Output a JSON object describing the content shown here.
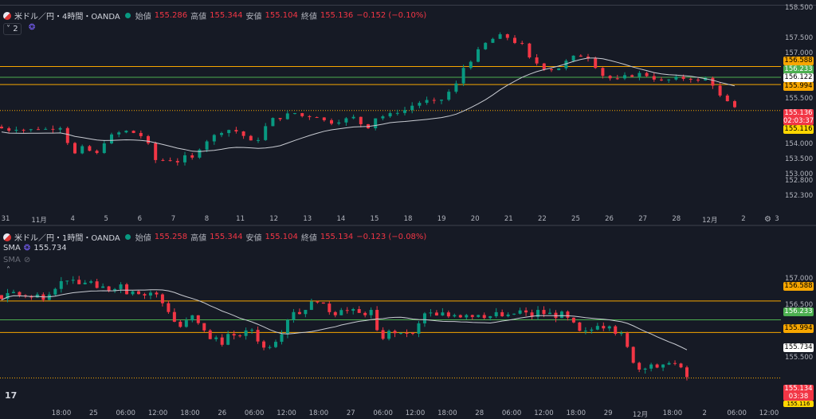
{
  "colors": {
    "up": "#089981",
    "down": "#f23645",
    "sma": "#c8cbd2",
    "orange": "#f7a600",
    "green": "#4caf50",
    "bg": "#161a25"
  },
  "chart_data": [
    {
      "type": "candlestick",
      "symbol": "米ドル／円・4時間・OANDA",
      "ohlc_labels": {
        "o": "始値",
        "h": "高値",
        "l": "安値",
        "c": "終値"
      },
      "ohlc": {
        "o": "155.286",
        "h": "155.344",
        "l": "155.104",
        "c": "155.136",
        "chg": "−0.152 (−0.10%)"
      },
      "indicator_count": "2",
      "ylim": [
        152.05,
        158.55
      ],
      "yticks": [
        "158.500",
        "157.500",
        "157.000",
        "156.500",
        "155.500",
        "154.500",
        "154.000",
        "153.500",
        "153.000",
        "152.800",
        "152.300"
      ],
      "xticks": [
        "31",
        "11月",
        "4",
        "5",
        "6",
        "7",
        "8",
        "11",
        "12",
        "13",
        "14",
        "15",
        "18",
        "19",
        "20",
        "21",
        "22",
        "25",
        "26",
        "27",
        "28",
        "12月",
        "2",
        "3"
      ],
      "hlines": [
        {
          "y": 156.588,
          "color": "orange",
          "label": "156.588"
        },
        {
          "y": 156.233,
          "color": "green",
          "label": "156.233"
        },
        {
          "y": 155.994,
          "color": "orange",
          "label": "155.994"
        },
        {
          "y": 155.136,
          "color": "orange-dotted"
        }
      ],
      "sma_last": "156.122",
      "last_price": "155.136",
      "countdown": "02:03:37",
      "extra_tag": "155.116",
      "close_path": [
        154.55,
        154.5,
        154.55,
        154.5,
        154.5,
        154.55,
        154.52,
        154.56,
        154.6,
        154.1,
        153.7,
        153.9,
        153.8,
        153.7,
        154.1,
        154.3,
        154.4,
        154.45,
        154.4,
        154.3,
        154.0,
        153.5,
        153.5,
        153.5,
        153.45,
        153.6,
        153.55,
        153.9,
        154.15,
        154.3,
        154.45,
        154.5,
        154.45,
        154.3,
        154.1,
        154.2,
        154.6,
        154.85,
        154.9,
        155.0,
        155.05,
        154.95,
        154.95,
        154.95,
        154.8,
        154.75,
        154.8,
        154.85,
        154.9,
        154.7,
        154.6,
        154.9,
        154.95,
        155.0,
        155.1,
        155.15,
        155.3,
        155.4,
        155.45,
        155.4,
        155.5,
        155.75,
        156.0,
        156.55,
        156.8,
        157.1,
        157.35,
        157.5,
        157.6,
        157.55,
        157.4,
        157.3,
        156.85,
        156.7,
        156.55,
        156.5,
        156.55,
        156.75,
        156.9,
        156.95,
        156.9,
        156.6,
        156.3,
        156.2,
        156.15,
        156.25,
        156.3,
        156.35,
        156.3,
        156.2,
        156.1,
        156.15,
        156.2,
        156.2,
        156.2,
        156.1,
        156.2,
        156.0,
        155.6,
        155.4,
        155.2
      ]
    },
    {
      "type": "candlestick",
      "symbol": "米ドル／円・1時間・OANDA",
      "ohlc_labels": {
        "o": "始値",
        "h": "高値",
        "l": "安値",
        "c": "終値"
      },
      "ohlc": {
        "o": "155.258",
        "h": "155.344",
        "l": "155.104",
        "c": "155.134",
        "chg": "−0.123 (−0.08%)"
      },
      "indicators": [
        {
          "name": "SMA",
          "value": "155.734"
        },
        {
          "name": "SMA"
        }
      ],
      "ylim": [
        154.9,
        157.4
      ],
      "yticks": [
        "157.000",
        "156.500",
        "155.500"
      ],
      "xticks": [
        "18:00",
        "25",
        "06:00",
        "12:00",
        "18:00",
        "26",
        "06:00",
        "12:00",
        "18:00",
        "27",
        "06:00",
        "12:00",
        "18:00",
        "28",
        "06:00",
        "12:00",
        "18:00",
        "29",
        "12月",
        "18:00",
        "2",
        "06:00",
        "12:00"
      ],
      "hlines": [
        {
          "y": 156.588,
          "color": "orange",
          "label": "156.588"
        },
        {
          "y": 156.233,
          "color": "green",
          "label": "156.233"
        },
        {
          "y": 155.994,
          "color": "orange",
          "label": "155.994"
        },
        {
          "y": 155.134,
          "color": "orange-dotted"
        }
      ],
      "sma_last": "155.734",
      "last_price": "155.134",
      "countdown": "03:38",
      "extra_tag": "155.116",
      "close_path": [
        156.65,
        156.75,
        156.75,
        156.7,
        156.7,
        156.65,
        156.7,
        156.65,
        156.75,
        156.85,
        156.95,
        157.0,
        156.95,
        156.9,
        156.95,
        156.95,
        156.8,
        156.85,
        156.8,
        156.85,
        156.9,
        156.75,
        156.8,
        156.75,
        156.7,
        156.75,
        156.7,
        156.55,
        156.4,
        156.2,
        156.1,
        156.2,
        156.3,
        156.15,
        156.05,
        155.85,
        155.9,
        155.8,
        155.95,
        155.9,
        155.95,
        156.0,
        156.05,
        155.85,
        155.7,
        155.75,
        155.85,
        156.0,
        156.25,
        156.4,
        156.35,
        156.45,
        156.55,
        156.6,
        156.5,
        156.4,
        156.35,
        156.45,
        156.4,
        156.4,
        156.35,
        156.35,
        156.4,
        156.0,
        155.9,
        156.0,
        156.0,
        155.95,
        156.0,
        155.95,
        156.15,
        156.35,
        156.35,
        156.3,
        156.35,
        156.3,
        156.35,
        156.3,
        156.35,
        156.3,
        156.35,
        156.3,
        156.3,
        156.35,
        156.3,
        156.3,
        156.35,
        156.4,
        156.35,
        156.3,
        156.4,
        156.35,
        156.35,
        156.3,
        156.35,
        156.25,
        156.15,
        156.0,
        156.0,
        156.05,
        156.15,
        156.1,
        156.15,
        156.0,
        155.95,
        155.7,
        155.45,
        155.3,
        155.35,
        155.4,
        155.3,
        155.35,
        155.45,
        155.4,
        155.3,
        155.15
      ]
    }
  ],
  "ui": {
    "settings_icon": "gear-icon",
    "eye_icon": "eye-off-icon",
    "alarm_icon": "clock-icon",
    "collapse_icon": "chevron-down-icon",
    "brand_text": "17"
  }
}
